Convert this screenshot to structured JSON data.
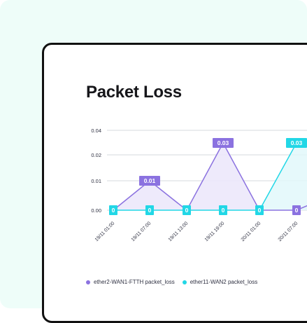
{
  "page": {
    "title": "Packet Loss"
  },
  "chart_data": {
    "type": "area",
    "title": "Packet Loss",
    "ylabel": "",
    "xlabel": "",
    "y_tick_labels": [
      "0.00",
      "0.01",
      "0.02",
      "0.04"
    ],
    "y_ticks": [
      0,
      0.01,
      0.02,
      0.04
    ],
    "categories": [
      "19/11 01:00",
      "19/11 07:00",
      "19/11 13:00",
      "19/11 19:00",
      "20/11 01:00",
      "20/11 07:00"
    ],
    "series": [
      {
        "name": "ether2-WAN1-FTTH packet_loss",
        "color": "#8b72e0",
        "values": [
          0,
          0.01,
          0,
          0.03,
          0,
          0
        ]
      },
      {
        "name": "ether11-WAN2 packet_loss",
        "color": "#22d7e6",
        "values": [
          0,
          0,
          0,
          0,
          0,
          0.03
        ]
      }
    ],
    "labels": [
      {
        "series": 1,
        "index": 0,
        "text": "0"
      },
      {
        "series": 0,
        "index": 1,
        "text": "0.01"
      },
      {
        "series": 1,
        "index": 1,
        "text": "0"
      },
      {
        "series": 1,
        "index": 2,
        "text": "0"
      },
      {
        "series": 0,
        "index": 3,
        "text": "0.03"
      },
      {
        "series": 1,
        "index": 3,
        "text": "0"
      },
      {
        "series": 1,
        "index": 4,
        "text": "0"
      },
      {
        "series": 0,
        "index": 5,
        "text": "0"
      },
      {
        "series": 1,
        "index": 5,
        "text": "0.03"
      }
    ],
    "legend_position": "bottom-left",
    "grid": true
  }
}
